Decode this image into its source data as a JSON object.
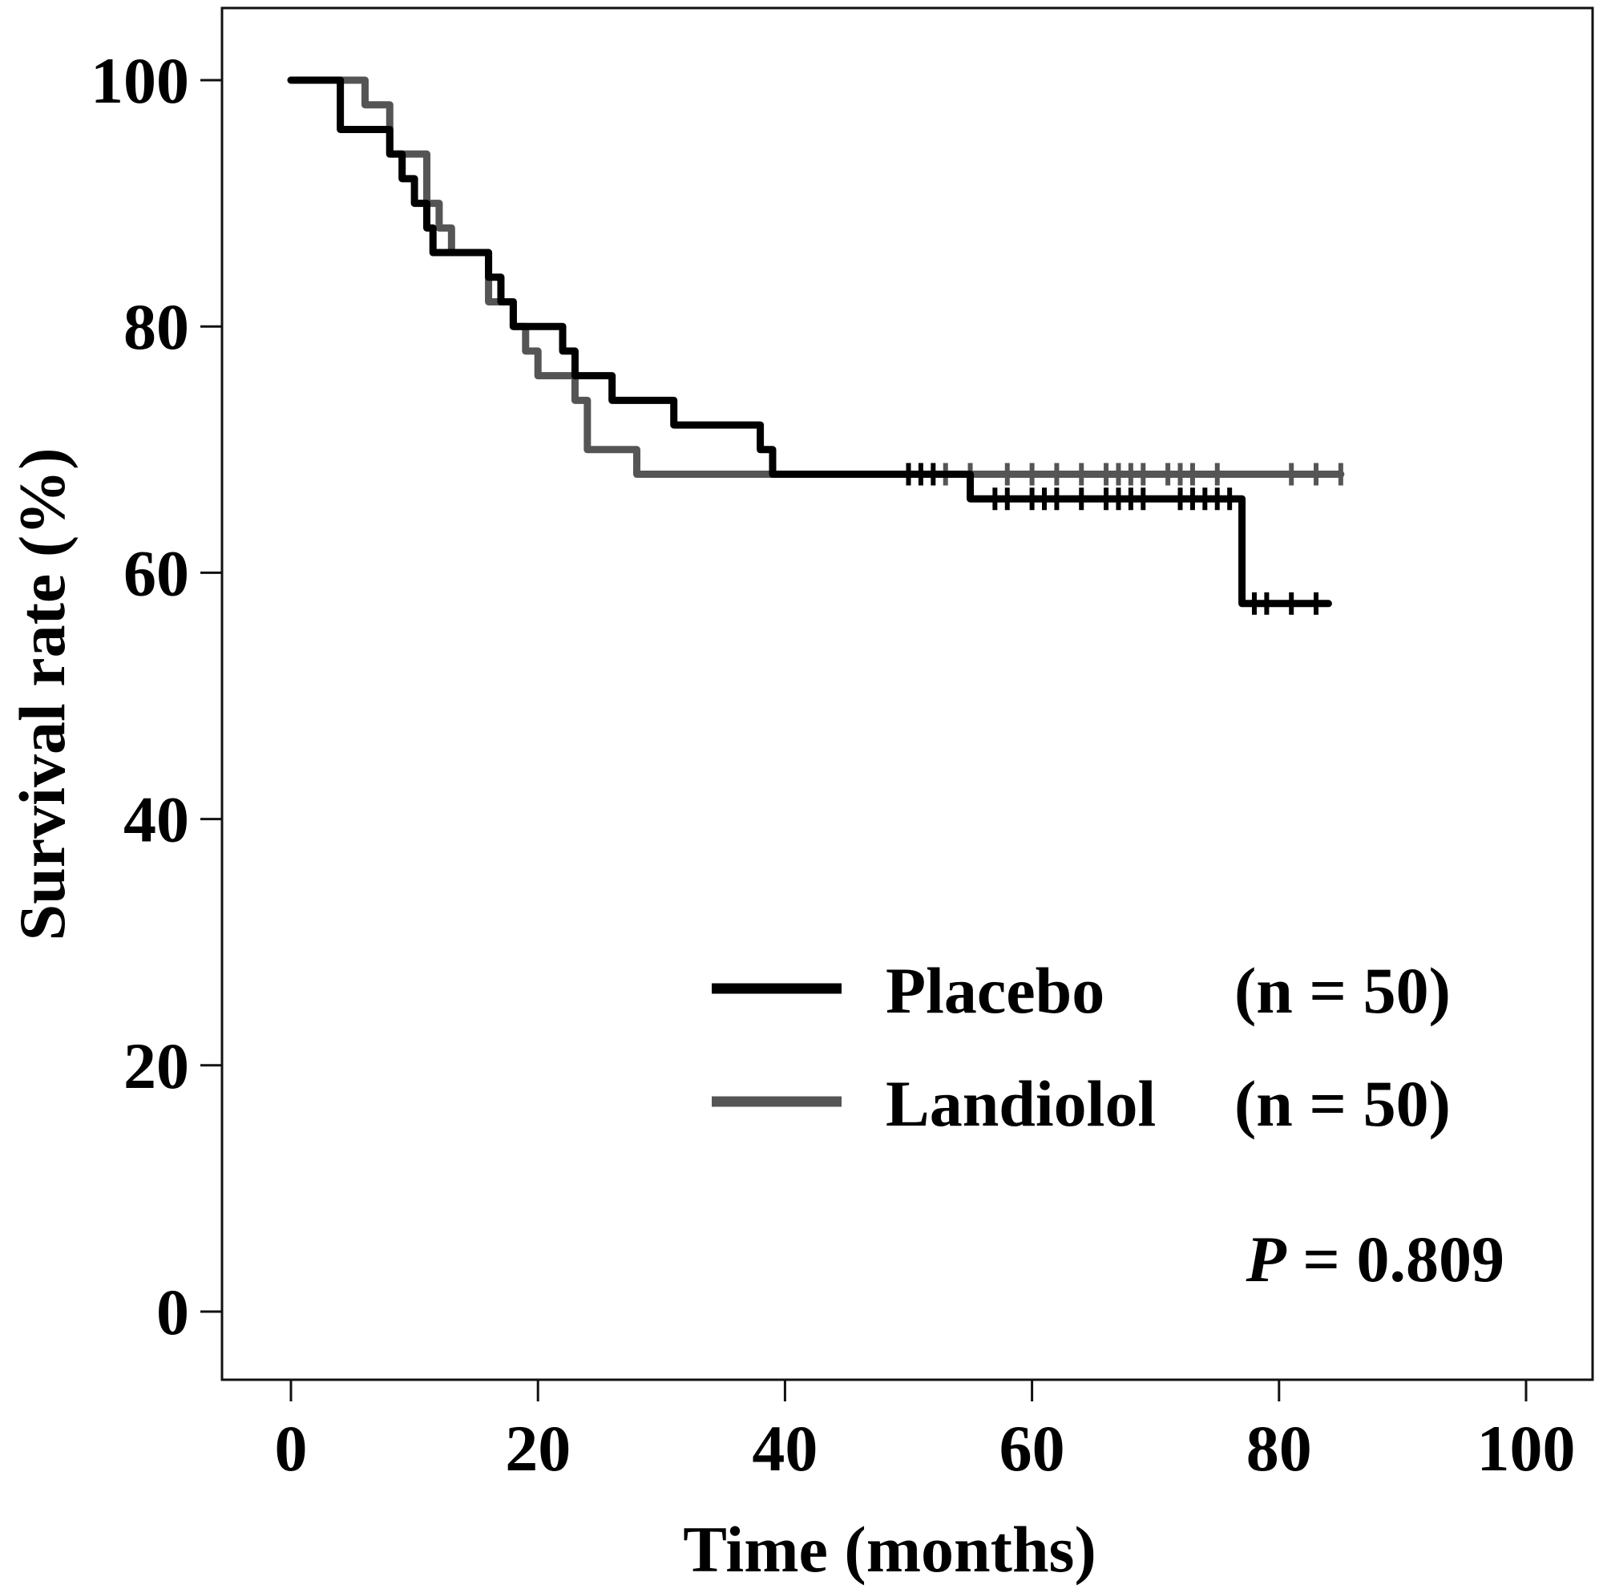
{
  "chart_data": {
    "type": "line",
    "subtype": "kaplan-meier step",
    "xlabel": "Time (months)",
    "ylabel": "Survival rate (%)",
    "xlim": [
      0,
      100
    ],
    "ylim": [
      0,
      100
    ],
    "xticks": [
      "0",
      "20",
      "40",
      "60",
      "80",
      "100"
    ],
    "yticks": [
      "0",
      "20",
      "40",
      "60",
      "80",
      "100"
    ],
    "grid": false,
    "legend_position": "bottom-right",
    "annotation": {
      "prefix": "P",
      "text": " = 0.809"
    },
    "series": [
      {
        "name": "Placebo",
        "n_label": "(n = 50)",
        "color": "#000000",
        "steps": [
          [
            0,
            100
          ],
          [
            4,
            96
          ],
          [
            8,
            94
          ],
          [
            9,
            92
          ],
          [
            10,
            90
          ],
          [
            11,
            88
          ],
          [
            11.5,
            86
          ],
          [
            16,
            84
          ],
          [
            17,
            82
          ],
          [
            18,
            80
          ],
          [
            22,
            78
          ],
          [
            23,
            76
          ],
          [
            26,
            74
          ],
          [
            31,
            72
          ],
          [
            38,
            70
          ],
          [
            39,
            68
          ],
          [
            55,
            66
          ],
          [
            77,
            57.5
          ],
          [
            84,
            57.5
          ]
        ],
        "censored": [
          [
            50,
            68
          ],
          [
            51,
            68
          ],
          [
            52,
            68
          ],
          [
            57,
            66
          ],
          [
            58,
            66
          ],
          [
            60,
            66
          ],
          [
            61,
            66
          ],
          [
            62,
            66
          ],
          [
            64,
            66
          ],
          [
            66,
            66
          ],
          [
            67,
            66
          ],
          [
            68,
            66
          ],
          [
            69,
            66
          ],
          [
            72,
            66
          ],
          [
            73,
            66
          ],
          [
            74,
            66
          ],
          [
            75,
            66
          ],
          [
            76,
            66
          ],
          [
            78,
            57.5
          ],
          [
            79,
            57.5
          ],
          [
            81,
            57.5
          ],
          [
            83,
            57.5
          ]
        ]
      },
      {
        "name": "Landiolol",
        "n_label": "(n = 50)",
        "color": "#555555",
        "steps": [
          [
            0,
            100
          ],
          [
            6,
            98
          ],
          [
            8,
            94
          ],
          [
            11,
            90
          ],
          [
            12,
            88
          ],
          [
            13,
            86
          ],
          [
            16,
            82
          ],
          [
            18,
            80
          ],
          [
            19,
            78
          ],
          [
            20,
            76
          ],
          [
            23,
            74
          ],
          [
            24,
            70
          ],
          [
            28,
            68
          ],
          [
            85,
            68
          ]
        ],
        "censored": [
          [
            53,
            68
          ],
          [
            55,
            68
          ],
          [
            58,
            68
          ],
          [
            60,
            68
          ],
          [
            62,
            68
          ],
          [
            64,
            68
          ],
          [
            66,
            68
          ],
          [
            67,
            68
          ],
          [
            68,
            68
          ],
          [
            69,
            68
          ],
          [
            71,
            68
          ],
          [
            72,
            68
          ],
          [
            73,
            68
          ],
          [
            75,
            68
          ],
          [
            81,
            68
          ],
          [
            83,
            68
          ],
          [
            85,
            68
          ]
        ]
      }
    ]
  }
}
